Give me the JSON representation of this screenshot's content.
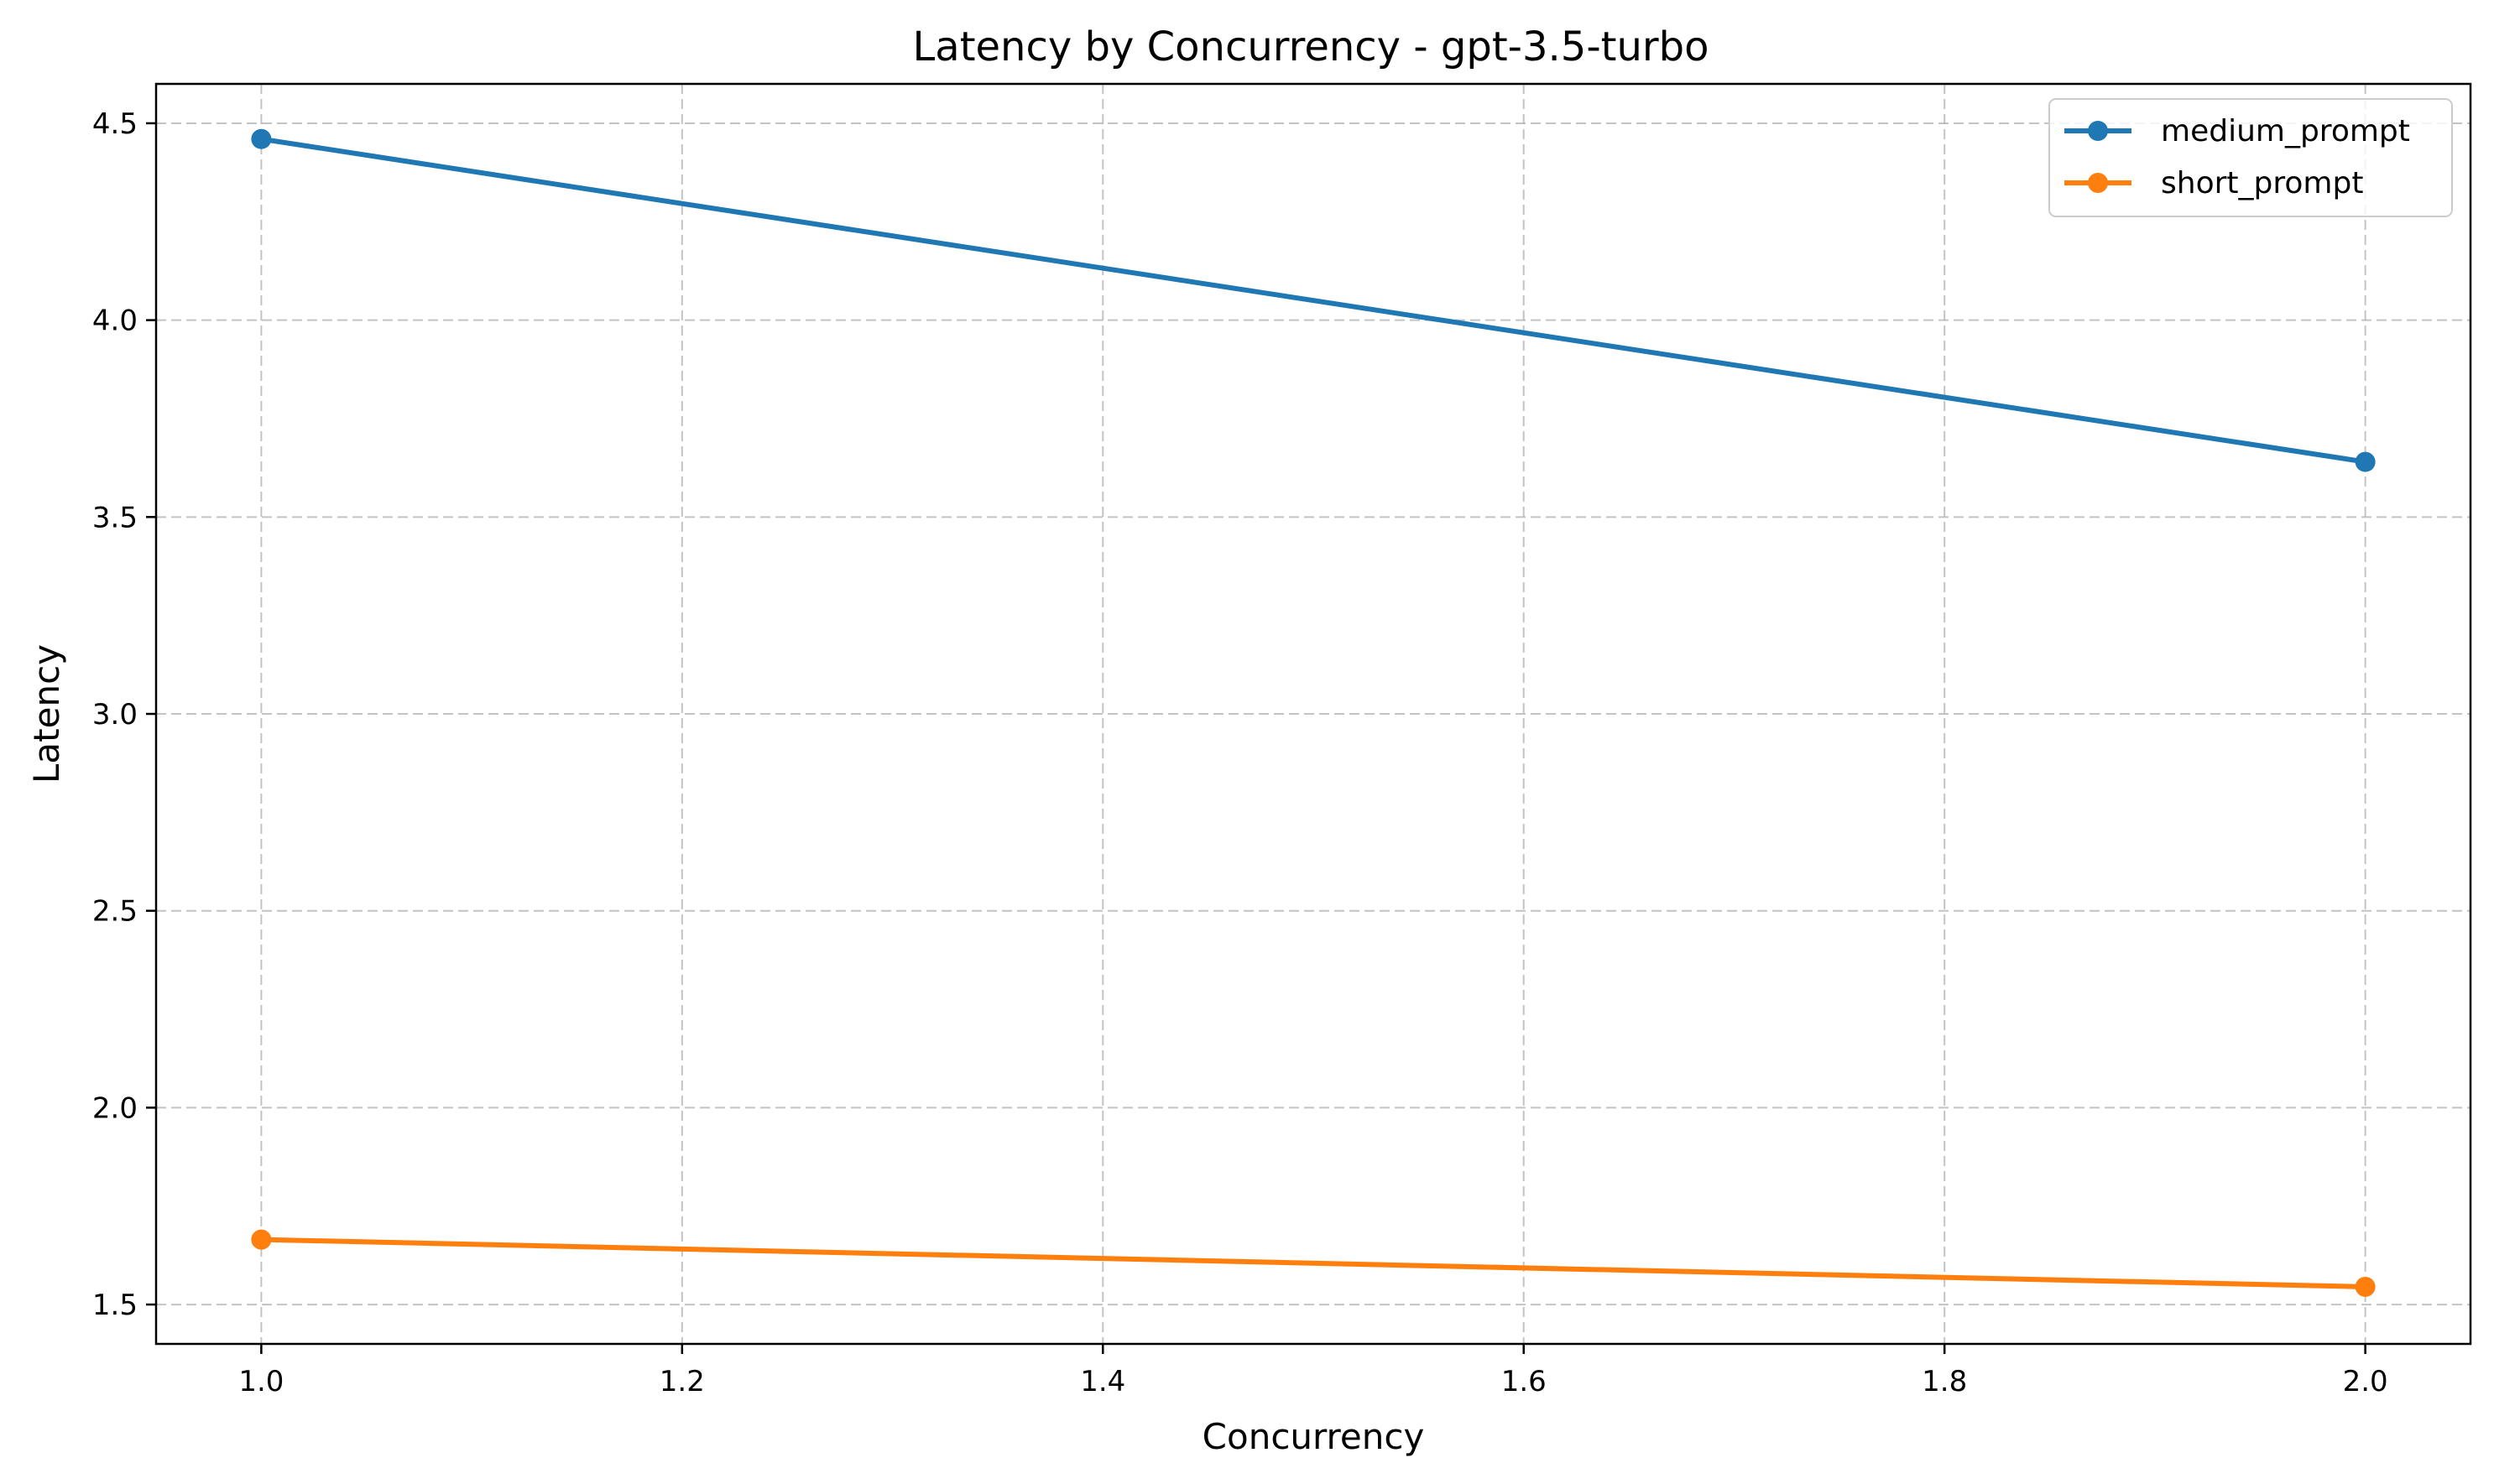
{
  "chart_data": {
    "type": "line",
    "title": "Latency by Concurrency - gpt-3.5-turbo",
    "xlabel": "Concurrency",
    "ylabel": "Latency",
    "xlim": [
      0.95,
      2.05
    ],
    "ylim": [
      1.4,
      4.6
    ],
    "x_ticks": [
      1.0,
      1.2,
      1.4,
      1.6,
      1.8,
      2.0
    ],
    "x_tick_labels": [
      "1.0",
      "1.2",
      "1.4",
      "1.6",
      "1.8",
      "2.0"
    ],
    "y_ticks": [
      1.5,
      2.0,
      2.5,
      3.0,
      3.5,
      4.0,
      4.5
    ],
    "y_tick_labels": [
      "1.5",
      "2.0",
      "2.5",
      "3.0",
      "3.5",
      "4.0",
      "4.5"
    ],
    "grid": true,
    "legend_position": "top-right",
    "x": [
      1.0,
      2.0
    ],
    "series": [
      {
        "name": "medium_prompt",
        "color": "#1f77b4",
        "values": [
          4.46,
          3.64
        ]
      },
      {
        "name": "short_prompt",
        "color": "#ff7f0e",
        "values": [
          1.665,
          1.545
        ]
      }
    ]
  }
}
